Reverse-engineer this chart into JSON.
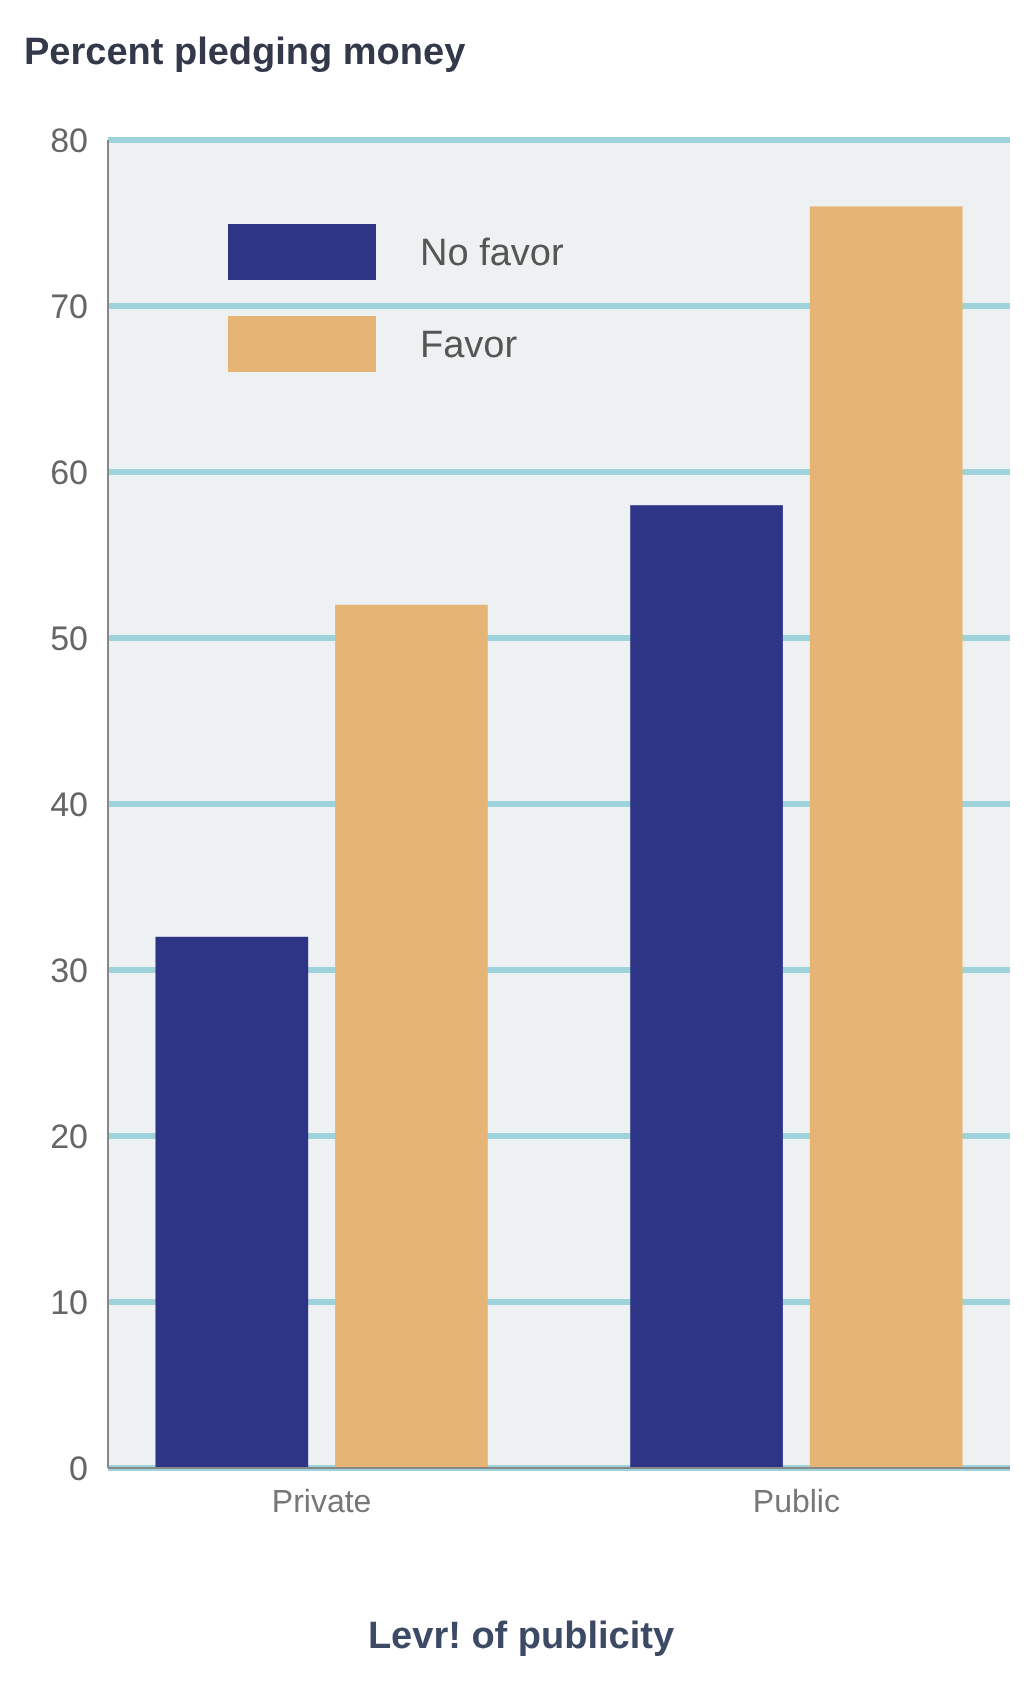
{
  "chart_data": {
    "type": "bar",
    "title": "Percent pledging money",
    "xlabel": "Levr! of publicity",
    "categories": [
      "Private",
      "Public"
    ],
    "series": [
      {
        "name": "No favor",
        "color": "#2e3586",
        "values": [
          32,
          58
        ]
      },
      {
        "name": "Favor",
        "color": "#e6b474",
        "values": [
          52,
          76
        ]
      }
    ],
    "ylim": [
      0,
      80
    ],
    "yticks": [
      0,
      10,
      20,
      30,
      40,
      50,
      60,
      70,
      80
    ],
    "grid": "y",
    "legend": "top left"
  }
}
